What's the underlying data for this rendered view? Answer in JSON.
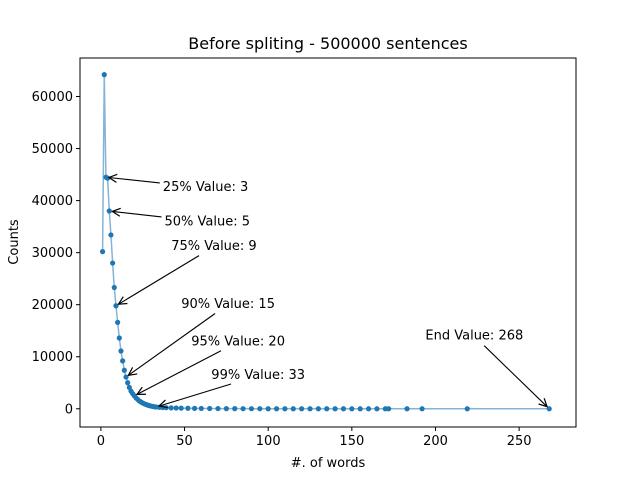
{
  "chart_data": {
    "type": "line",
    "title": "Before spliting - 500000 sentences",
    "xlabel": "#. of words",
    "ylabel": "Counts",
    "xlim": [
      -12.5,
      284
    ],
    "ylim": [
      -3500,
      67400
    ],
    "xticks": [
      0,
      50,
      100,
      150,
      200,
      250
    ],
    "yticks": [
      0,
      10000,
      20000,
      30000,
      40000,
      50000,
      60000
    ],
    "grid": false,
    "series": [
      {
        "color": "#1f77b4",
        "marker": "circle",
        "points": [
          [
            1,
            30200
          ],
          [
            2,
            64200
          ],
          [
            3,
            44500
          ],
          [
            4,
            44300
          ],
          [
            5,
            38000
          ],
          [
            6,
            33400
          ],
          [
            7,
            28000
          ],
          [
            8,
            23300
          ],
          [
            9,
            19800
          ],
          [
            10,
            16600
          ],
          [
            11,
            13600
          ],
          [
            12,
            11100
          ],
          [
            13,
            9200
          ],
          [
            14,
            7400
          ],
          [
            15,
            6100
          ],
          [
            16,
            5000
          ],
          [
            17,
            4100
          ],
          [
            18,
            3400
          ],
          [
            19,
            2900
          ],
          [
            20,
            2500
          ],
          [
            21,
            2100
          ],
          [
            22,
            1800
          ],
          [
            23,
            1500
          ],
          [
            24,
            1300
          ],
          [
            25,
            1100
          ],
          [
            26,
            950
          ],
          [
            27,
            820
          ],
          [
            28,
            700
          ],
          [
            29,
            600
          ],
          [
            30,
            520
          ],
          [
            31,
            450
          ],
          [
            32,
            390
          ],
          [
            33,
            340
          ],
          [
            35,
            290
          ],
          [
            37,
            250
          ],
          [
            39,
            210
          ],
          [
            42,
            180
          ],
          [
            45,
            150
          ],
          [
            48,
            120
          ],
          [
            52,
            100
          ],
          [
            56,
            80
          ],
          [
            60,
            65
          ],
          [
            65,
            50
          ],
          [
            70,
            40
          ],
          [
            75,
            30
          ],
          [
            80,
            25
          ],
          [
            85,
            20
          ],
          [
            90,
            15
          ],
          [
            95,
            12
          ],
          [
            100,
            10
          ],
          [
            105,
            8
          ],
          [
            110,
            6
          ],
          [
            115,
            5
          ],
          [
            120,
            4
          ],
          [
            125,
            3
          ],
          [
            130,
            3
          ],
          [
            135,
            2
          ],
          [
            140,
            2
          ],
          [
            145,
            2
          ],
          [
            150,
            1
          ],
          [
            155,
            1
          ],
          [
            160,
            1
          ],
          [
            165,
            1
          ],
          [
            170,
            1
          ],
          [
            172,
            1
          ],
          [
            183,
            1
          ],
          [
            192,
            1
          ],
          [
            219,
            1
          ],
          [
            268,
            1
          ]
        ]
      }
    ],
    "annotations": [
      {
        "text": "25% Value: 3",
        "x": 3,
        "y": 44500,
        "text_x": 37,
        "text_y": 41800
      },
      {
        "text": "50% Value: 5",
        "x": 5,
        "y": 38000,
        "text_x": 38,
        "text_y": 35200
      },
      {
        "text": "75% Value: 9",
        "x": 9,
        "y": 19800,
        "text_x": 42,
        "text_y": 30500
      },
      {
        "text": "90% Value: 15",
        "x": 15,
        "y": 6100,
        "text_x": 48,
        "text_y": 19400
      },
      {
        "text": "95% Value: 20",
        "x": 20,
        "y": 2500,
        "text_x": 54,
        "text_y": 12200
      },
      {
        "text": "99% Value: 33",
        "x": 33,
        "y": 340,
        "text_x": 66,
        "text_y": 5700
      },
      {
        "text": "End Value: 268",
        "x": 268,
        "y": 1,
        "text_x": 194,
        "text_y": 13300
      }
    ]
  }
}
